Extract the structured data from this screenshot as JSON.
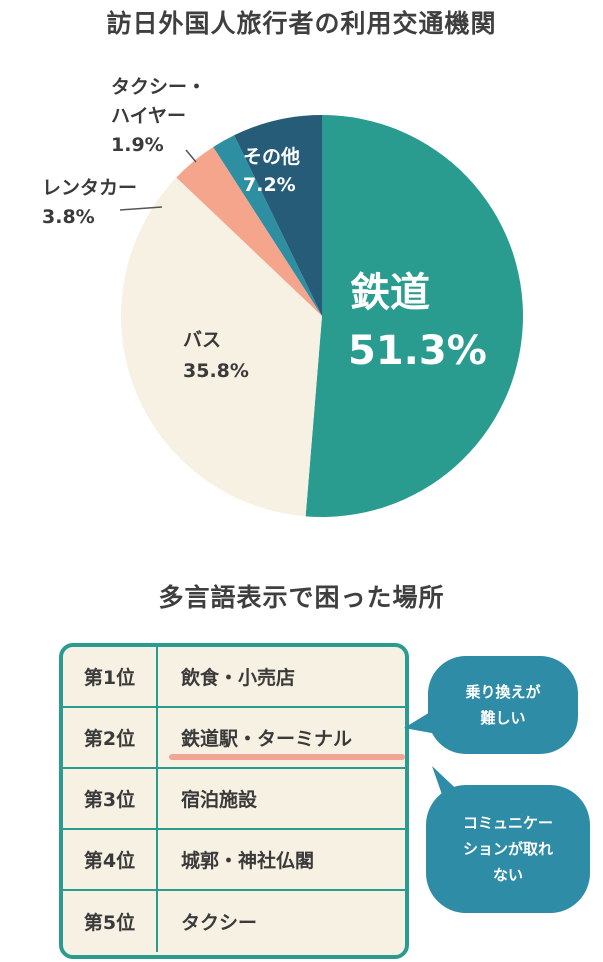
{
  "page": {
    "title_pie": "訪日外国人旅行者の利用交通機関",
    "title_table": "多言語表示で困った場所"
  },
  "colors": {
    "teal": "#2a9c8f",
    "cream": "#f6f1e3",
    "salmon": "#f6a58d",
    "blue": "#2e8fa3",
    "navy": "#265c78",
    "bubble": "#2f8ca6",
    "highlight": "#f2a594"
  },
  "chart_data": [
    {
      "type": "pie",
      "title": "訪日外国人旅行者の利用交通機関",
      "slices": [
        {
          "name": "鉄道",
          "value": 51.3,
          "label": "51.3%",
          "color": "#2a9c8f"
        },
        {
          "name": "バス",
          "value": 35.8,
          "label": "35.8%",
          "color": "#f6f1e3"
        },
        {
          "name": "レンタカー",
          "value": 3.8,
          "label": "3.8%",
          "color": "#f6a58d"
        },
        {
          "name": "タクシー・ハイヤー",
          "value": 1.9,
          "label": "1.9%",
          "color": "#2e8fa3"
        },
        {
          "name": "その他",
          "value": 7.2,
          "label": "7.2%",
          "color": "#265c78"
        }
      ],
      "start": "top",
      "direction": "clockwise"
    },
    {
      "type": "table",
      "title": "多言語表示で困った場所",
      "rows": [
        {
          "rank": "第1位",
          "place": "飲食・小売店"
        },
        {
          "rank": "第2位",
          "place": "鉄道駅・ターミナル"
        },
        {
          "rank": "第3位",
          "place": "宿泊施設"
        },
        {
          "rank": "第4位",
          "place": "城郭・神社仏閣"
        },
        {
          "rank": "第5位",
          "place": "タクシー"
        }
      ]
    }
  ],
  "labels": {
    "rail_name": "鉄道",
    "rail_value": "51.3%",
    "bus_name": "バス",
    "bus_value": "35.8%",
    "rental_name": "レンタカー",
    "rental_value": "3.8%",
    "taxi_name_line1": "タクシー・",
    "taxi_name_line2": "ハイヤー",
    "taxi_value": "1.9%",
    "other_name": "その他",
    "other_value": "7.2%"
  },
  "bubbles": {
    "b1_line1": "乗り換えが",
    "b1_line2": "難しい",
    "b2_line1": "コミュニケー",
    "b2_line2": "ションが取れ",
    "b2_line3": "ない"
  }
}
